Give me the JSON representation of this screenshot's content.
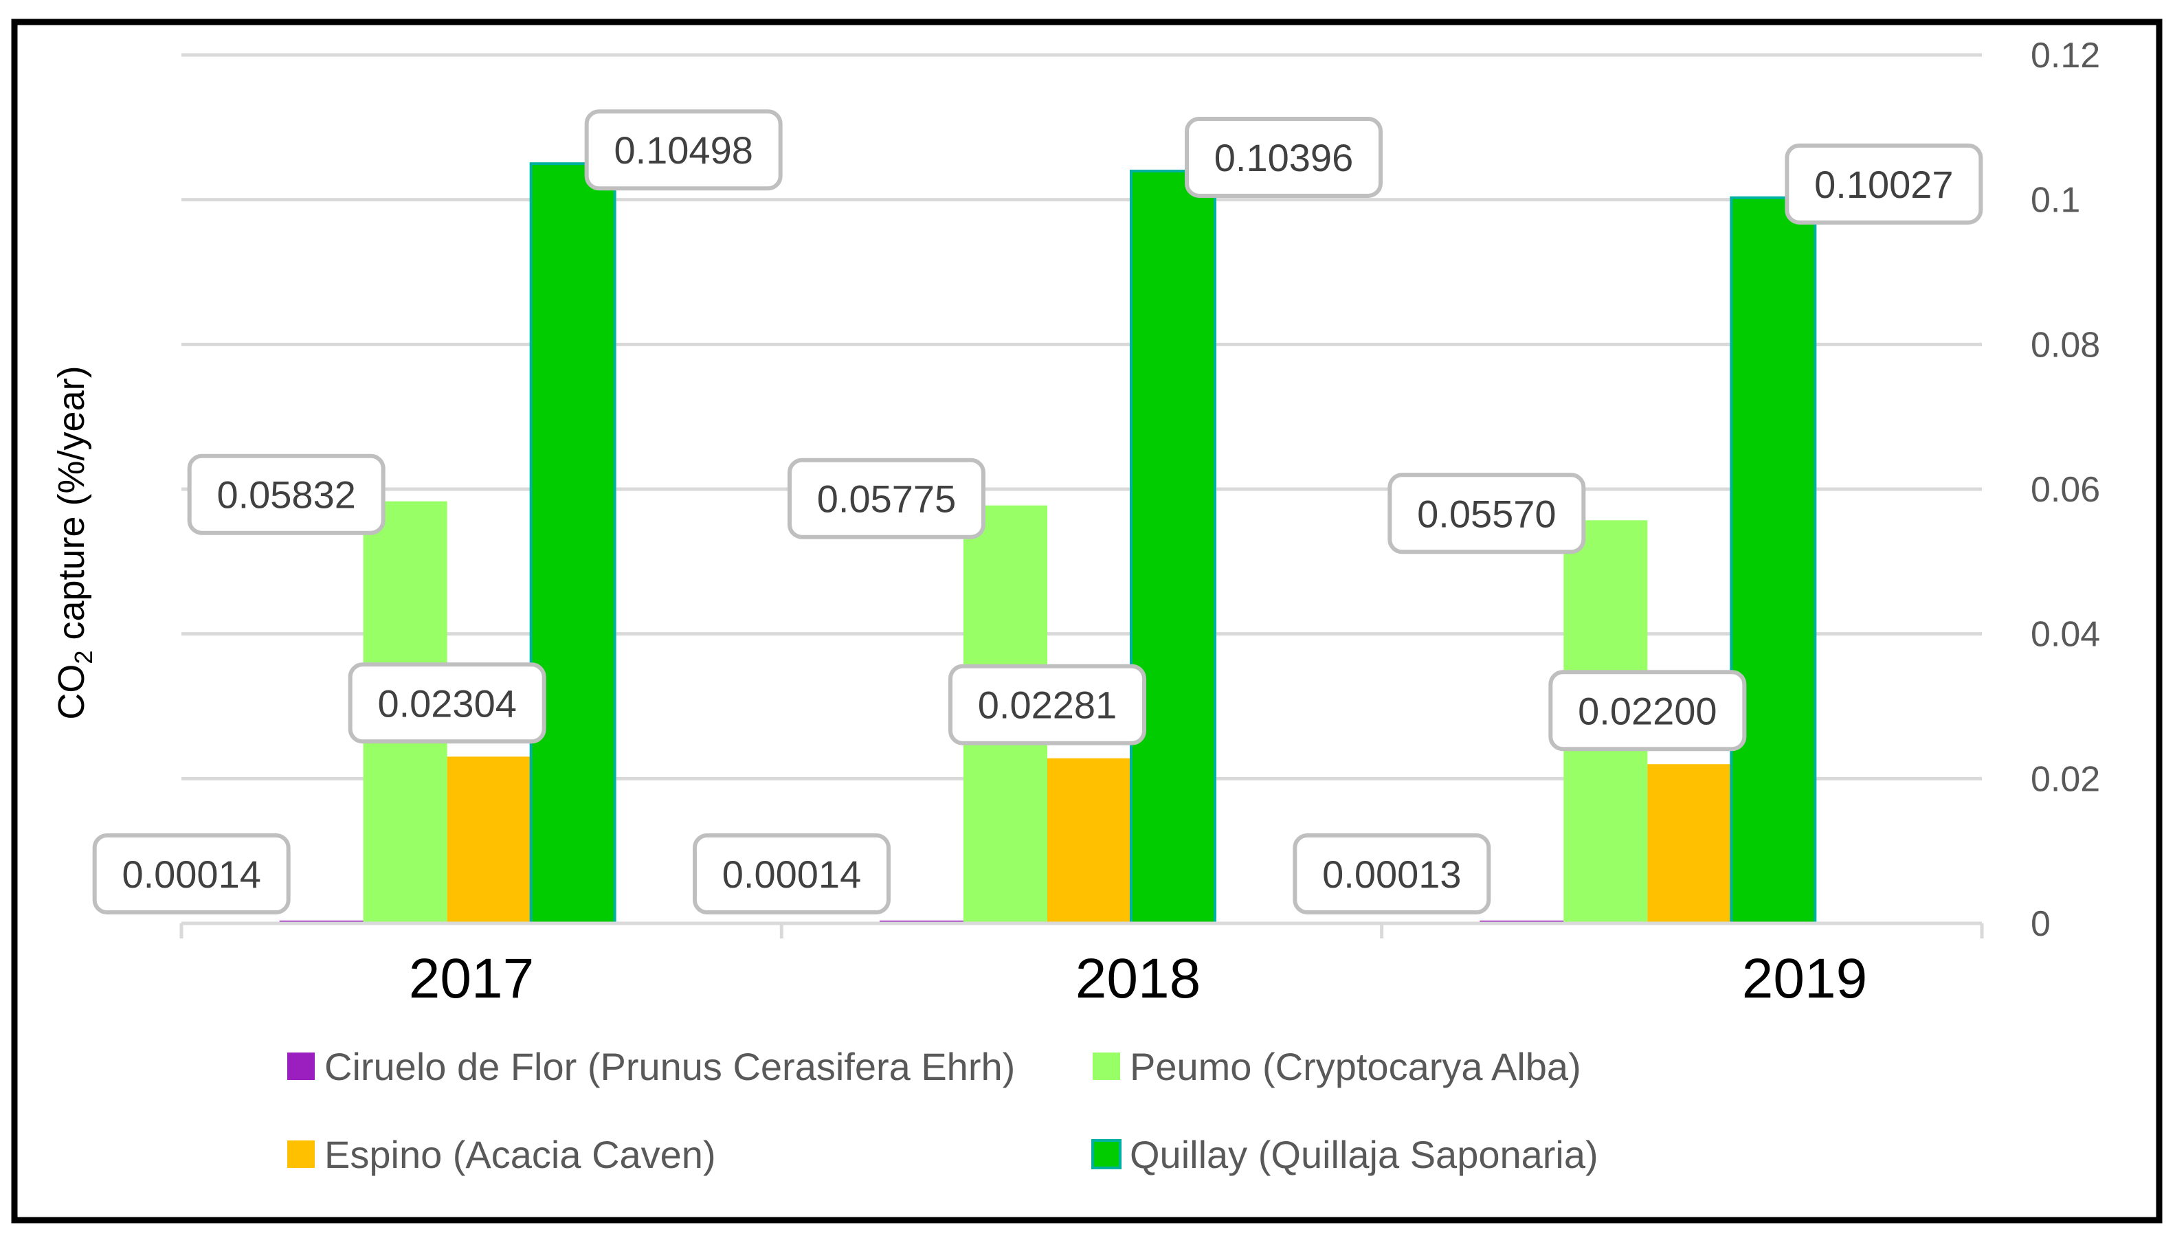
{
  "chart_data": {
    "type": "bar",
    "title": "",
    "xlabel": "",
    "ylabel": "CO2 capture (%/year)",
    "ylabel_parts": {
      "pre": "CO",
      "sub": "2",
      "post": " capture (%/year)"
    },
    "categories": [
      "2017",
      "2018",
      "2019"
    ],
    "ylim": [
      0,
      0.12
    ],
    "yticks": [
      0,
      0.02,
      0.04,
      0.06,
      0.08,
      0.1,
      0.12
    ],
    "ytick_labels": [
      "0",
      "0.02",
      "0.04",
      "0.06",
      "0.08",
      "0.1",
      "0.12"
    ],
    "y_axis_side": "right",
    "grid": true,
    "legend_position": "bottom",
    "series": [
      {
        "name": "Ciruelo de Flor (Prunus Cerasifera Ehrh)",
        "color": "#9b1fbf",
        "values": [
          0.00014,
          0.00014,
          0.00013
        ],
        "labels": [
          "0.00014",
          "0.00014",
          "0.00013"
        ]
      },
      {
        "name": "Peumo (Cryptocarya Alba)",
        "color": "#99ff66",
        "values": [
          0.05832,
          0.05775,
          0.0557
        ],
        "labels": [
          "0.05832",
          "0.05775",
          "0.05570"
        ]
      },
      {
        "name": "Espino (Acacia Caven)",
        "color": "#ffc000",
        "values": [
          0.02304,
          0.02281,
          0.022
        ],
        "labels": [
          "0.02304",
          "0.02281",
          "0.02200"
        ]
      },
      {
        "name": "Quillay (Quillaja Saponaria)",
        "color": "#00cc00",
        "border": "#00b0a0",
        "values": [
          0.10498,
          0.10396,
          0.10027
        ],
        "labels": [
          "0.10498",
          "0.10396",
          "0.10027"
        ]
      }
    ]
  }
}
